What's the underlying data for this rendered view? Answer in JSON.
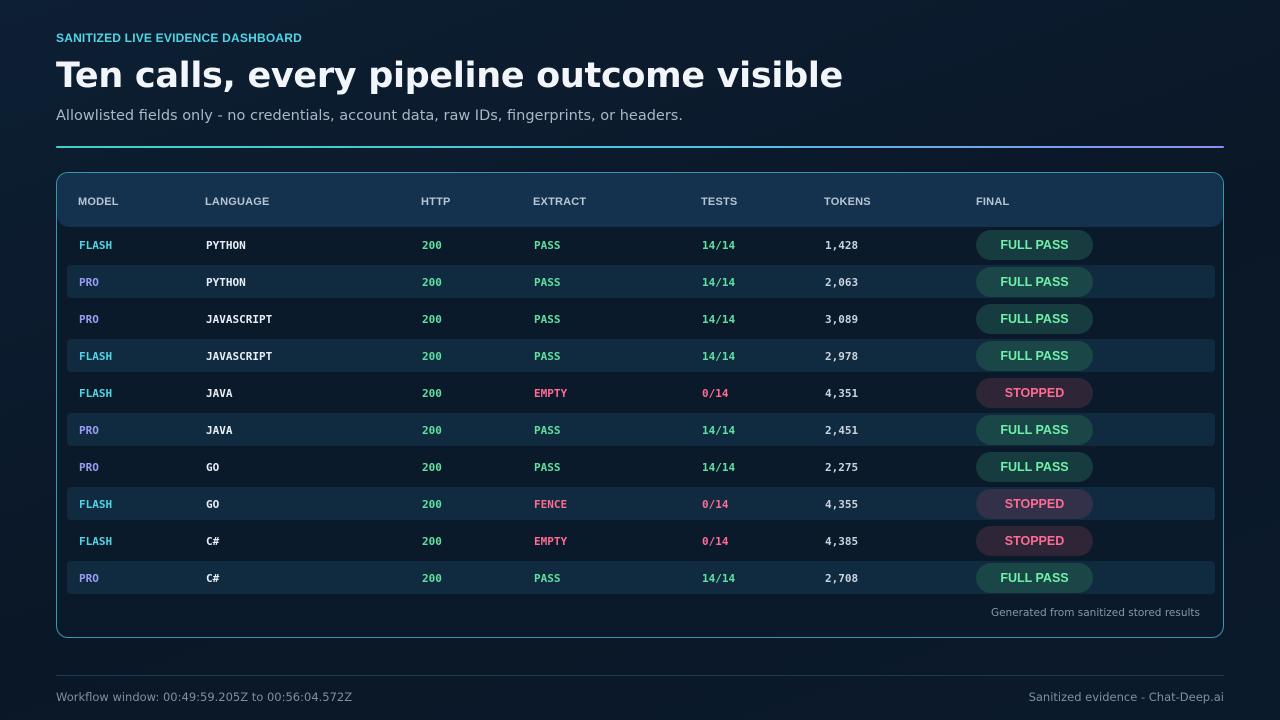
{
  "header": {
    "eyebrow": "SANITIZED LIVE EVIDENCE DASHBOARD",
    "title": "Ten calls, every pipeline outcome visible",
    "subtitle": "Allowlisted fields only - no credentials, account data, raw IDs, fingerprints, or headers."
  },
  "table": {
    "columns": {
      "model": "MODEL",
      "language": "LANGUAGE",
      "http": "HTTP",
      "extract": "EXTRACT",
      "tests": "TESTS",
      "tokens": "TOKENS",
      "final": "FINAL"
    },
    "rows": [
      {
        "model": "FLASH",
        "language": "PYTHON",
        "http": "200",
        "extract": "PASS",
        "tests": "14/14",
        "tokens": "1,428",
        "final": "FULL PASS"
      },
      {
        "model": "PRO",
        "language": "PYTHON",
        "http": "200",
        "extract": "PASS",
        "tests": "14/14",
        "tokens": "2,063",
        "final": "FULL PASS"
      },
      {
        "model": "PRO",
        "language": "JAVASCRIPT",
        "http": "200",
        "extract": "PASS",
        "tests": "14/14",
        "tokens": "3,089",
        "final": "FULL PASS"
      },
      {
        "model": "FLASH",
        "language": "JAVASCRIPT",
        "http": "200",
        "extract": "PASS",
        "tests": "14/14",
        "tokens": "2,978",
        "final": "FULL PASS"
      },
      {
        "model": "FLASH",
        "language": "JAVA",
        "http": "200",
        "extract": "EMPTY",
        "tests": "0/14",
        "tokens": "4,351",
        "final": "STOPPED"
      },
      {
        "model": "PRO",
        "language": "JAVA",
        "http": "200",
        "extract": "PASS",
        "tests": "14/14",
        "tokens": "2,451",
        "final": "FULL PASS"
      },
      {
        "model": "PRO",
        "language": "GO",
        "http": "200",
        "extract": "PASS",
        "tests": "14/14",
        "tokens": "2,275",
        "final": "FULL PASS"
      },
      {
        "model": "FLASH",
        "language": "GO",
        "http": "200",
        "extract": "FENCE",
        "tests": "0/14",
        "tokens": "4,355",
        "final": "STOPPED"
      },
      {
        "model": "FLASH",
        "language": "C#",
        "http": "200",
        "extract": "EMPTY",
        "tests": "0/14",
        "tokens": "4,385",
        "final": "STOPPED"
      },
      {
        "model": "PRO",
        "language": "C#",
        "http": "200",
        "extract": "PASS",
        "tests": "14/14",
        "tokens": "2,708",
        "final": "FULL PASS"
      }
    ],
    "note": "Generated from sanitized stored results"
  },
  "footer": {
    "left": "Workflow window: 00:49:59.205Z to 00:56:04.572Z",
    "right": "Sanitized evidence - Chat-Deep.ai"
  },
  "colors": {
    "accent_cyan": "#4fd6e6",
    "accent_violet": "#9b9cf5",
    "pass_green": "#5fe0a0",
    "fail_pink": "#ff6b93",
    "background": "#0b1a2a"
  }
}
